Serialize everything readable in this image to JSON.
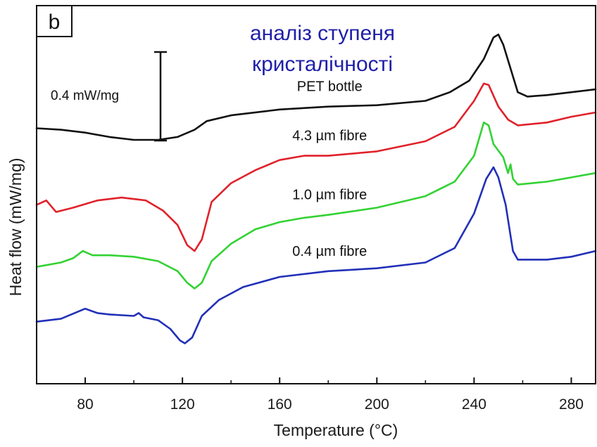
{
  "chart_data": {
    "type": "line",
    "panel_label": "b",
    "annotation": [
      "аналіз ступеня",
      "кристалічності"
    ],
    "xlabel": "Temperature (°C)",
    "ylabel": "Heat flow (mW/mg)",
    "xlim": [
      60,
      290
    ],
    "xticks": [
      80,
      120,
      160,
      200,
      240,
      280
    ],
    "yaxis_ticks": false,
    "grid": false,
    "scale_bar": {
      "label": "0.4 mW/mg",
      "value": 0.4
    },
    "annotation_color": "#1f1fa8",
    "series": [
      {
        "name": "PET bottle",
        "color": "#111111",
        "label_x": 180,
        "points": [
          [
            60,
            1.77
          ],
          [
            70,
            1.76
          ],
          [
            80,
            1.74
          ],
          [
            90,
            1.71
          ],
          [
            100,
            1.69
          ],
          [
            110,
            1.69
          ],
          [
            118,
            1.71
          ],
          [
            125,
            1.76
          ],
          [
            130,
            1.82
          ],
          [
            140,
            1.86
          ],
          [
            160,
            1.9
          ],
          [
            180,
            1.92
          ],
          [
            200,
            1.93
          ],
          [
            220,
            1.96
          ],
          [
            230,
            2.02
          ],
          [
            238,
            2.1
          ],
          [
            244,
            2.25
          ],
          [
            248,
            2.4
          ],
          [
            250,
            2.42
          ],
          [
            252,
            2.35
          ],
          [
            256,
            2.13
          ],
          [
            258,
            2.02
          ],
          [
            262,
            1.99
          ],
          [
            270,
            2.0
          ],
          [
            280,
            2.02
          ],
          [
            290,
            2.04
          ]
        ]
      },
      {
        "name": "4.3 µm fibre",
        "color": "#e0222b",
        "label_x": 180,
        "points": [
          [
            60,
            1.24
          ],
          [
            64,
            1.27
          ],
          [
            68,
            1.19
          ],
          [
            75,
            1.22
          ],
          [
            85,
            1.27
          ],
          [
            95,
            1.29
          ],
          [
            105,
            1.27
          ],
          [
            112,
            1.2
          ],
          [
            118,
            1.1
          ],
          [
            122,
            0.96
          ],
          [
            125,
            0.92
          ],
          [
            128,
            1.0
          ],
          [
            132,
            1.26
          ],
          [
            140,
            1.39
          ],
          [
            150,
            1.48
          ],
          [
            160,
            1.55
          ],
          [
            170,
            1.58
          ],
          [
            180,
            1.58
          ],
          [
            200,
            1.61
          ],
          [
            220,
            1.68
          ],
          [
            232,
            1.78
          ],
          [
            240,
            1.96
          ],
          [
            244,
            2.08
          ],
          [
            246,
            2.07
          ],
          [
            250,
            1.92
          ],
          [
            254,
            1.83
          ],
          [
            258,
            1.79
          ],
          [
            270,
            1.81
          ],
          [
            280,
            1.85
          ],
          [
            290,
            1.88
          ]
        ]
      },
      {
        "name": "1.0 µm fibre",
        "color": "#33d233",
        "label_x": 180,
        "points": [
          [
            60,
            0.81
          ],
          [
            70,
            0.84
          ],
          [
            75,
            0.87
          ],
          [
            79,
            0.92
          ],
          [
            83,
            0.89
          ],
          [
            90,
            0.89
          ],
          [
            100,
            0.88
          ],
          [
            110,
            0.85
          ],
          [
            118,
            0.78
          ],
          [
            122,
            0.7
          ],
          [
            125,
            0.66
          ],
          [
            128,
            0.7
          ],
          [
            132,
            0.85
          ],
          [
            140,
            0.97
          ],
          [
            150,
            1.07
          ],
          [
            160,
            1.12
          ],
          [
            170,
            1.15
          ],
          [
            180,
            1.17
          ],
          [
            200,
            1.22
          ],
          [
            220,
            1.3
          ],
          [
            232,
            1.4
          ],
          [
            240,
            1.58
          ],
          [
            244,
            1.81
          ],
          [
            246,
            1.79
          ],
          [
            248,
            1.66
          ],
          [
            252,
            1.57
          ],
          [
            254,
            1.46
          ],
          [
            255,
            1.52
          ],
          [
            256,
            1.42
          ],
          [
            258,
            1.38
          ],
          [
            270,
            1.4
          ],
          [
            280,
            1.43
          ],
          [
            290,
            1.46
          ]
        ]
      },
      {
        "name": "0.4 µm fibre",
        "color": "#2230b8",
        "label_x": 180,
        "points": [
          [
            60,
            0.43
          ],
          [
            70,
            0.45
          ],
          [
            80,
            0.52
          ],
          [
            85,
            0.49
          ],
          [
            90,
            0.48
          ],
          [
            100,
            0.47
          ],
          [
            102,
            0.49
          ],
          [
            104,
            0.46
          ],
          [
            110,
            0.44
          ],
          [
            115,
            0.38
          ],
          [
            119,
            0.3
          ],
          [
            121,
            0.28
          ],
          [
            124,
            0.32
          ],
          [
            128,
            0.47
          ],
          [
            135,
            0.58
          ],
          [
            145,
            0.67
          ],
          [
            160,
            0.74
          ],
          [
            180,
            0.78
          ],
          [
            200,
            0.8
          ],
          [
            220,
            0.84
          ],
          [
            232,
            0.94
          ],
          [
            240,
            1.18
          ],
          [
            245,
            1.42
          ],
          [
            248,
            1.5
          ],
          [
            250,
            1.43
          ],
          [
            253,
            1.24
          ],
          [
            256,
            0.92
          ],
          [
            258,
            0.86
          ],
          [
            270,
            0.86
          ],
          [
            280,
            0.88
          ],
          [
            290,
            0.92
          ]
        ]
      }
    ]
  }
}
